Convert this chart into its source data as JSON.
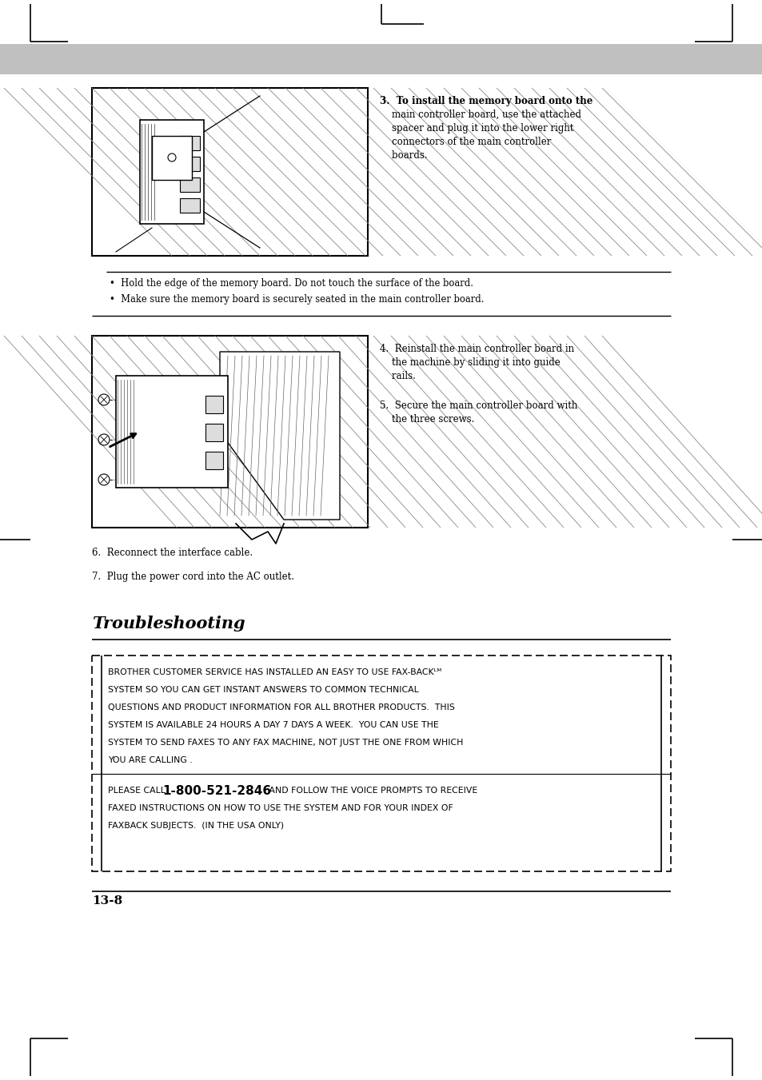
{
  "bg_color": "#ffffff",
  "header_gray": "#c0c0c0",
  "text_color": "#000000",
  "step3_text_lines": [
    "3.  To install the memory board onto the",
    "    main controller board, use the attached",
    "    spacer and plug it into the lower right",
    "    connectors of the main controller",
    "    boards."
  ],
  "note_bullet1": "•  Hold the edge of the memory board. Do not touch the surface of the board.",
  "note_bullet2": "•  Make sure the memory board is securely seated in the main controller board.",
  "step4_text_lines": [
    "4.  Reinstall the main controller board in",
    "    the machine by sliding it into guide",
    "    rails."
  ],
  "step5_text_lines": [
    "5.  Secure the main controller board with",
    "    the three screws."
  ],
  "step6_text": "6.  Reconnect the interface cable.",
  "step7_text": "7.  Plug the power cord into the AC outlet.",
  "troubleshooting_title": "Troubleshooting",
  "faxback_line1": "BROTHER CUSTOMER SERVICE HAS INSTALLED AN EASY TO USE FAX-BACKᴸᴹ",
  "faxback_line2": "SYSTEM SO YOU CAN GET INSTANT ANSWERS TO COMMON TECHNICAL",
  "faxback_line3": "QUESTIONS AND PRODUCT INFORMATION FOR ALL BROTHER PRODUCTS.  THIS",
  "faxback_line4": "SYSTEM IS AVAILABLE 24 HOURS A DAY 7 DAYS A WEEK.  YOU CAN USE THE",
  "faxback_line5": "SYSTEM TO SEND FAXES TO ANY FAX MACHINE, NOT JUST THE ONE FROM WHICH",
  "faxback_line6": "YOU ARE CALLING .",
  "faxback_pre": "PLEASE CALL ",
  "faxback_phone": "1-800-521-2846",
  "faxback_post1": " AND FOLLOW THE VOICE PROMPTS TO RECEIVE",
  "faxback_post2": "FAXED INSTRUCTIONS ON HOW TO USE THE SYSTEM AND FOR YOUR INDEX OF",
  "faxback_post3": "FAXBACK SUBJECTS.  (IN THE USA ONLY)",
  "page_number": "13-8"
}
